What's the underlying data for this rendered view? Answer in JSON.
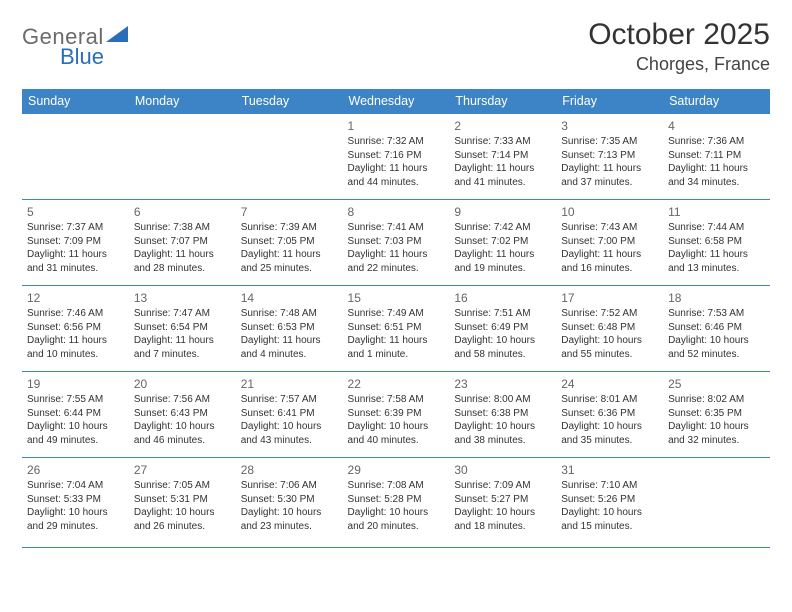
{
  "brand": {
    "part1": "General",
    "part2": "Blue",
    "triangle_color": "#2a6db8"
  },
  "title": "October 2025",
  "location": "Chorges, France",
  "colors": {
    "header_bg": "#3d84c6",
    "header_fg": "#ffffff",
    "border": "#3d84c6",
    "daynum": "#666666",
    "text": "#333333",
    "background": "#ffffff"
  },
  "typography": {
    "title_fontsize": 30,
    "location_fontsize": 18,
    "weekday_fontsize": 12.5,
    "daynum_fontsize": 12,
    "cell_fontsize": 10
  },
  "weekdays": [
    "Sunday",
    "Monday",
    "Tuesday",
    "Wednesday",
    "Thursday",
    "Friday",
    "Saturday"
  ],
  "layout": {
    "type": "table",
    "columns": 7,
    "rows": 5,
    "week_start": "Sunday",
    "first_day_column_index": 3
  },
  "days": [
    {
      "n": 1,
      "sunrise": "7:32 AM",
      "sunset": "7:16 PM",
      "daylight": "11 hours and 44 minutes."
    },
    {
      "n": 2,
      "sunrise": "7:33 AM",
      "sunset": "7:14 PM",
      "daylight": "11 hours and 41 minutes."
    },
    {
      "n": 3,
      "sunrise": "7:35 AM",
      "sunset": "7:13 PM",
      "daylight": "11 hours and 37 minutes."
    },
    {
      "n": 4,
      "sunrise": "7:36 AM",
      "sunset": "7:11 PM",
      "daylight": "11 hours and 34 minutes."
    },
    {
      "n": 5,
      "sunrise": "7:37 AM",
      "sunset": "7:09 PM",
      "daylight": "11 hours and 31 minutes."
    },
    {
      "n": 6,
      "sunrise": "7:38 AM",
      "sunset": "7:07 PM",
      "daylight": "11 hours and 28 minutes."
    },
    {
      "n": 7,
      "sunrise": "7:39 AM",
      "sunset": "7:05 PM",
      "daylight": "11 hours and 25 minutes."
    },
    {
      "n": 8,
      "sunrise": "7:41 AM",
      "sunset": "7:03 PM",
      "daylight": "11 hours and 22 minutes."
    },
    {
      "n": 9,
      "sunrise": "7:42 AM",
      "sunset": "7:02 PM",
      "daylight": "11 hours and 19 minutes."
    },
    {
      "n": 10,
      "sunrise": "7:43 AM",
      "sunset": "7:00 PM",
      "daylight": "11 hours and 16 minutes."
    },
    {
      "n": 11,
      "sunrise": "7:44 AM",
      "sunset": "6:58 PM",
      "daylight": "11 hours and 13 minutes."
    },
    {
      "n": 12,
      "sunrise": "7:46 AM",
      "sunset": "6:56 PM",
      "daylight": "11 hours and 10 minutes."
    },
    {
      "n": 13,
      "sunrise": "7:47 AM",
      "sunset": "6:54 PM",
      "daylight": "11 hours and 7 minutes."
    },
    {
      "n": 14,
      "sunrise": "7:48 AM",
      "sunset": "6:53 PM",
      "daylight": "11 hours and 4 minutes."
    },
    {
      "n": 15,
      "sunrise": "7:49 AM",
      "sunset": "6:51 PM",
      "daylight": "11 hours and 1 minute."
    },
    {
      "n": 16,
      "sunrise": "7:51 AM",
      "sunset": "6:49 PM",
      "daylight": "10 hours and 58 minutes."
    },
    {
      "n": 17,
      "sunrise": "7:52 AM",
      "sunset": "6:48 PM",
      "daylight": "10 hours and 55 minutes."
    },
    {
      "n": 18,
      "sunrise": "7:53 AM",
      "sunset": "6:46 PM",
      "daylight": "10 hours and 52 minutes."
    },
    {
      "n": 19,
      "sunrise": "7:55 AM",
      "sunset": "6:44 PM",
      "daylight": "10 hours and 49 minutes."
    },
    {
      "n": 20,
      "sunrise": "7:56 AM",
      "sunset": "6:43 PM",
      "daylight": "10 hours and 46 minutes."
    },
    {
      "n": 21,
      "sunrise": "7:57 AM",
      "sunset": "6:41 PM",
      "daylight": "10 hours and 43 minutes."
    },
    {
      "n": 22,
      "sunrise": "7:58 AM",
      "sunset": "6:39 PM",
      "daylight": "10 hours and 40 minutes."
    },
    {
      "n": 23,
      "sunrise": "8:00 AM",
      "sunset": "6:38 PM",
      "daylight": "10 hours and 38 minutes."
    },
    {
      "n": 24,
      "sunrise": "8:01 AM",
      "sunset": "6:36 PM",
      "daylight": "10 hours and 35 minutes."
    },
    {
      "n": 25,
      "sunrise": "8:02 AM",
      "sunset": "6:35 PM",
      "daylight": "10 hours and 32 minutes."
    },
    {
      "n": 26,
      "sunrise": "7:04 AM",
      "sunset": "5:33 PM",
      "daylight": "10 hours and 29 minutes."
    },
    {
      "n": 27,
      "sunrise": "7:05 AM",
      "sunset": "5:31 PM",
      "daylight": "10 hours and 26 minutes."
    },
    {
      "n": 28,
      "sunrise": "7:06 AM",
      "sunset": "5:30 PM",
      "daylight": "10 hours and 23 minutes."
    },
    {
      "n": 29,
      "sunrise": "7:08 AM",
      "sunset": "5:28 PM",
      "daylight": "10 hours and 20 minutes."
    },
    {
      "n": 30,
      "sunrise": "7:09 AM",
      "sunset": "5:27 PM",
      "daylight": "10 hours and 18 minutes."
    },
    {
      "n": 31,
      "sunrise": "7:10 AM",
      "sunset": "5:26 PM",
      "daylight": "10 hours and 15 minutes."
    }
  ],
  "labels": {
    "sunrise": "Sunrise:",
    "sunset": "Sunset:",
    "daylight": "Daylight:"
  }
}
